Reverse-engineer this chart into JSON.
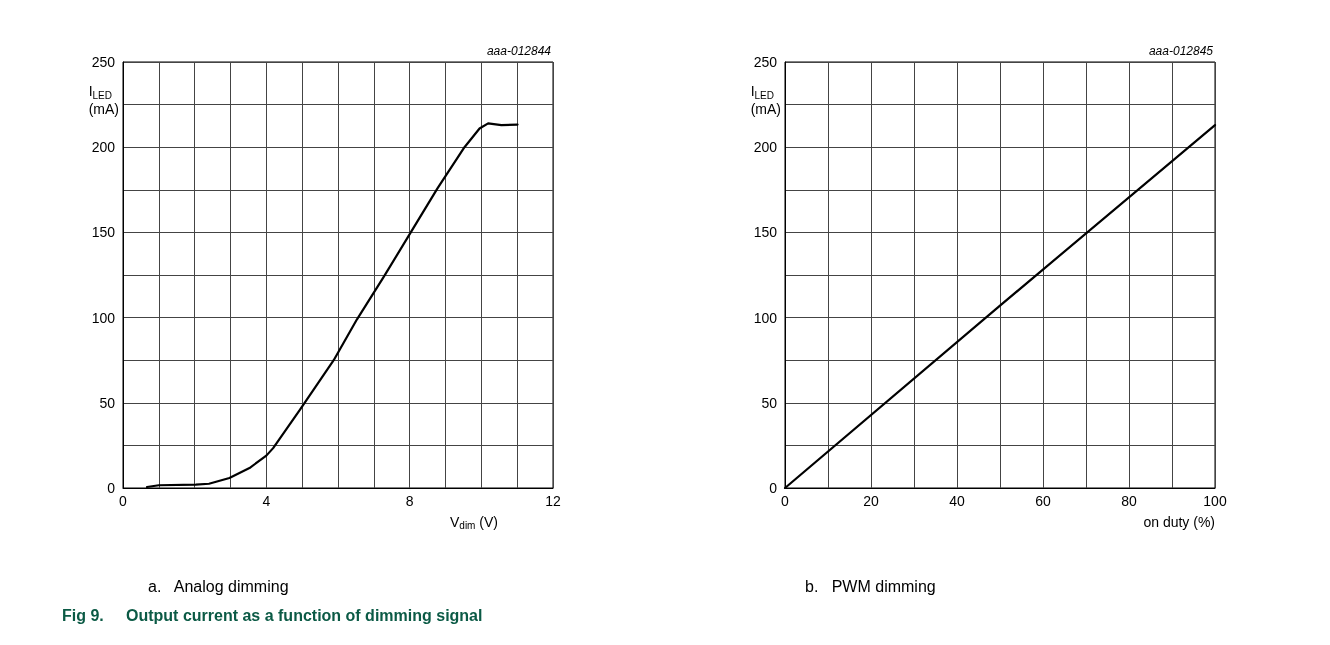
{
  "chart_data": [
    {
      "type": "line",
      "xlabel": "V$_{dim}$ (V)",
      "ylabel": "I$_{LED}$ (mA)",
      "annotations": [
        "aaa-012844",
        "a.   Analog dimming",
        "Fig 9.     Output current as a function of dimming signal"
      ],
      "series": [
        {
          "color": "#000000",
          "x": [
            0.67,
            1.0,
            2.03,
            2.4,
            2.97,
            3.53,
            4.0,
            4.19,
            4.94,
            5.88,
            6.53,
            7.28,
            8.03,
            8.78,
            9.53,
            9.95,
            10.19,
            10.56,
            11.01
          ],
          "values": [
            0.6,
            1.6,
            2,
            2.5,
            5.9,
            11.7,
            19,
            23.4,
            46,
            75,
            99,
            124,
            150,
            176,
            200,
            211,
            214,
            213,
            213.3
          ]
        }
      ],
      "xlim": [
        0,
        12
      ],
      "xticks": [
        0,
        {
          "value": 1,
          "label": null
        },
        {
          "value": 2,
          "label": null
        },
        {
          "value": 3,
          "label": null
        },
        4,
        {
          "value": 5,
          "label": null
        },
        {
          "value": 6,
          "label": null
        },
        {
          "value": 7,
          "label": null
        },
        8,
        {
          "value": 9,
          "label": null
        },
        {
          "value": 10,
          "label": null
        },
        {
          "value": 11,
          "label": null
        },
        12
      ],
      "ylim": [
        0,
        250
      ],
      "yticks": [
        0,
        {
          "value": 25,
          "label": null
        },
        50,
        {
          "value": 75,
          "label": null
        },
        100,
        {
          "value": 125,
          "label": null
        },
        150,
        {
          "value": 175,
          "label": null
        },
        200,
        {
          "value": 225,
          "label": null
        },
        250
      ],
      "grid": true,
      "marker": "none",
      "line_style": "solid"
    },
    {
      "type": "line",
      "xlabel": "on duty (%)",
      "ylabel": "I$_{LED}$ (mA)",
      "annotations": [
        "aaa-012845",
        "b.   PWM dimming"
      ],
      "series": [
        {
          "color": "#000000",
          "x": [
            0,
            50,
            100
          ],
          "values": [
            0,
            107,
            213
          ]
        }
      ],
      "xlim": [
        0,
        100
      ],
      "xticks": [
        0,
        {
          "value": 10,
          "label": null
        },
        20,
        {
          "value": 30,
          "label": null
        },
        40,
        {
          "value": 50,
          "label": null
        },
        60,
        {
          "value": 70,
          "label": null
        },
        80,
        {
          "value": 90,
          "label": null
        },
        100
      ],
      "ylim": [
        0,
        250
      ],
      "yticks": [
        0,
        {
          "value": 25,
          "label": null
        },
        50,
        {
          "value": 75,
          "label": null
        },
        100,
        {
          "value": 125,
          "label": null
        },
        150,
        {
          "value": 175,
          "label": null
        },
        200,
        {
          "value": 225,
          "label": null
        },
        250
      ],
      "grid": true,
      "marker": "none",
      "line_style": "solid"
    }
  ]
}
